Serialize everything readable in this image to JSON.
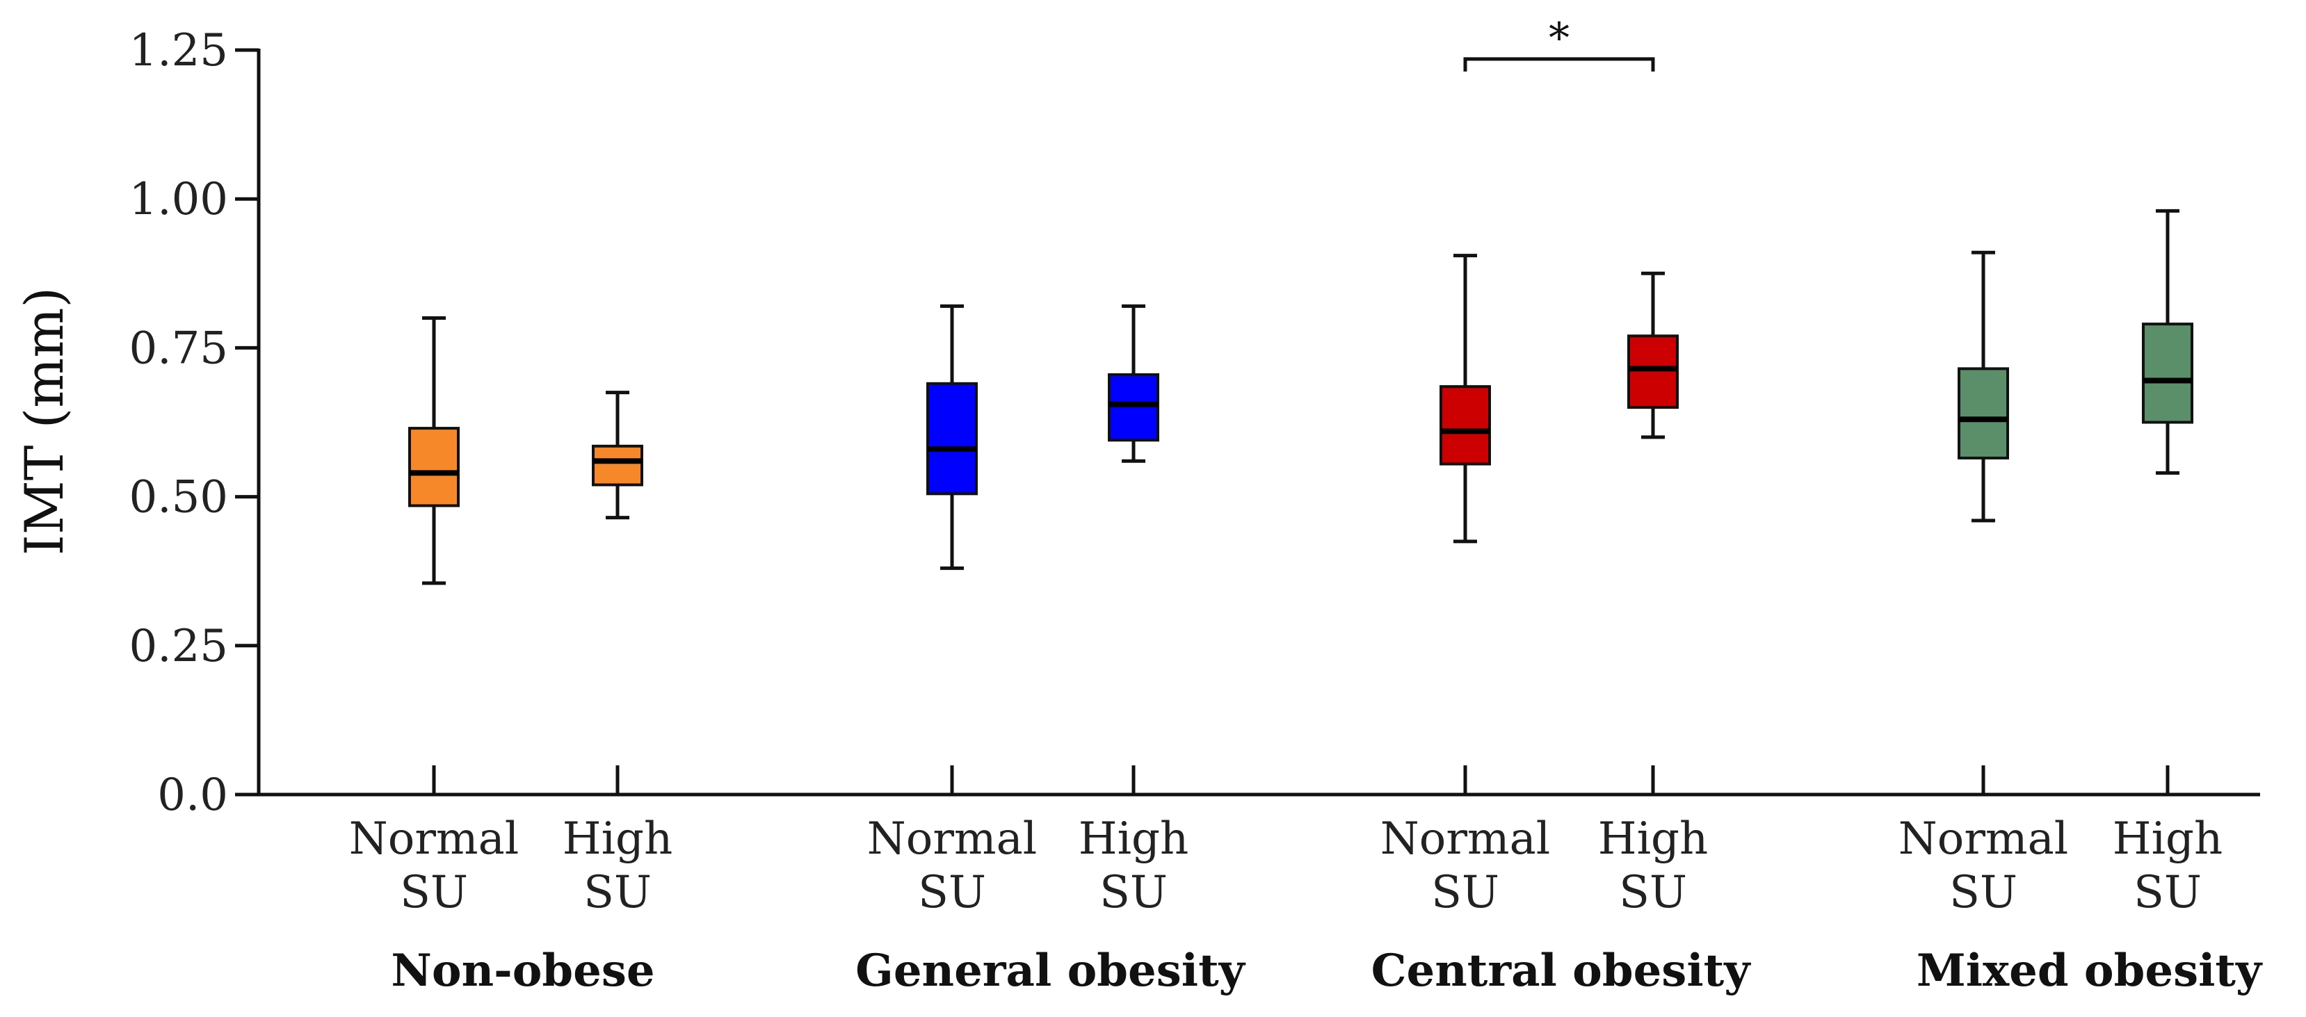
{
  "chart_data": {
    "type": "box",
    "title": "",
    "ylabel": "IMT (mm)",
    "xlabel": "",
    "ylim": [
      0,
      1.25
    ],
    "yticks": [
      {
        "value": 0,
        "label": "0.0"
      },
      {
        "value": 0.25,
        "label": "0.25"
      },
      {
        "value": 0.5,
        "label": "0.50"
      },
      {
        "value": 0.75,
        "label": "0.75"
      },
      {
        "value": 1.0,
        "label": "1.00"
      },
      {
        "value": 1.25,
        "label": "1.25"
      }
    ],
    "groups": [
      {
        "name": "Non-obese",
        "color": "#F7882A"
      },
      {
        "name": "General obesity",
        "color": "#0000FF"
      },
      {
        "name": "Central obesity",
        "color": "#CC0000"
      },
      {
        "name": "Mixed obesity",
        "color": "#5A8F6A"
      }
    ],
    "boxes": [
      {
        "group": 0,
        "label_line1": "Normal",
        "label_line2": "SU",
        "min": 0.355,
        "q1": 0.485,
        "median": 0.54,
        "q3": 0.615,
        "max": 0.8
      },
      {
        "group": 0,
        "label_line1": "High",
        "label_line2": "SU",
        "min": 0.465,
        "q1": 0.52,
        "median": 0.56,
        "q3": 0.585,
        "max": 0.675
      },
      {
        "group": 1,
        "label_line1": "Normal",
        "label_line2": "SU",
        "min": 0.38,
        "q1": 0.505,
        "median": 0.58,
        "q3": 0.69,
        "max": 0.82
      },
      {
        "group": 1,
        "label_line1": "High",
        "label_line2": "SU",
        "min": 0.56,
        "q1": 0.595,
        "median": 0.655,
        "q3": 0.705,
        "max": 0.82
      },
      {
        "group": 2,
        "label_line1": "Normal",
        "label_line2": "SU",
        "min": 0.425,
        "q1": 0.555,
        "median": 0.61,
        "q3": 0.685,
        "max": 0.905
      },
      {
        "group": 2,
        "label_line1": "High",
        "label_line2": "SU",
        "min": 0.6,
        "q1": 0.65,
        "median": 0.715,
        "q3": 0.77,
        "max": 0.875
      },
      {
        "group": 3,
        "label_line1": "Normal",
        "label_line2": "SU",
        "min": 0.46,
        "q1": 0.565,
        "median": 0.63,
        "q3": 0.715,
        "max": 0.91
      },
      {
        "group": 3,
        "label_line1": "High",
        "label_line2": "SU",
        "min": 0.54,
        "q1": 0.625,
        "median": 0.695,
        "q3": 0.79,
        "max": 0.98
      }
    ],
    "significance": [
      {
        "from_box": 4,
        "to_box": 5,
        "level": 1.235,
        "label": "*"
      }
    ]
  }
}
